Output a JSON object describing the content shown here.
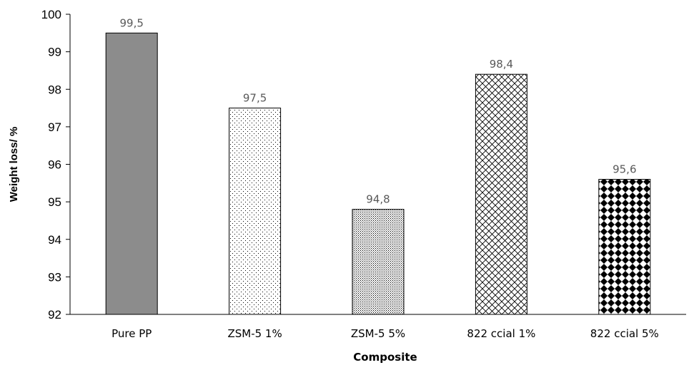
{
  "chart_data": {
    "type": "bar",
    "categories": [
      "Pure PP",
      "ZSM-5 1%",
      "ZSM-5 5%",
      "822 ccial 1%",
      "822 ccial 5%"
    ],
    "values": [
      99.5,
      97.5,
      94.8,
      98.4,
      95.6
    ],
    "data_labels": [
      "99,5",
      "97,5",
      "94,8",
      "98,4",
      "95,6"
    ],
    "patterns": [
      "solid-gray",
      "sparse-dots",
      "dense-dots",
      "crosshatch",
      "checker-diamond"
    ],
    "colors": {
      "solid_fill": "#8c8c8c",
      "pattern_ink": "#000000",
      "label_gray": "#595959"
    },
    "title": "",
    "xlabel": "Composite",
    "ylabel": "Weight loss/ %",
    "ylim": [
      92,
      100
    ],
    "yticks": [
      92,
      93,
      94,
      95,
      96,
      97,
      98,
      99,
      100
    ],
    "grid": false,
    "legend": "none"
  }
}
